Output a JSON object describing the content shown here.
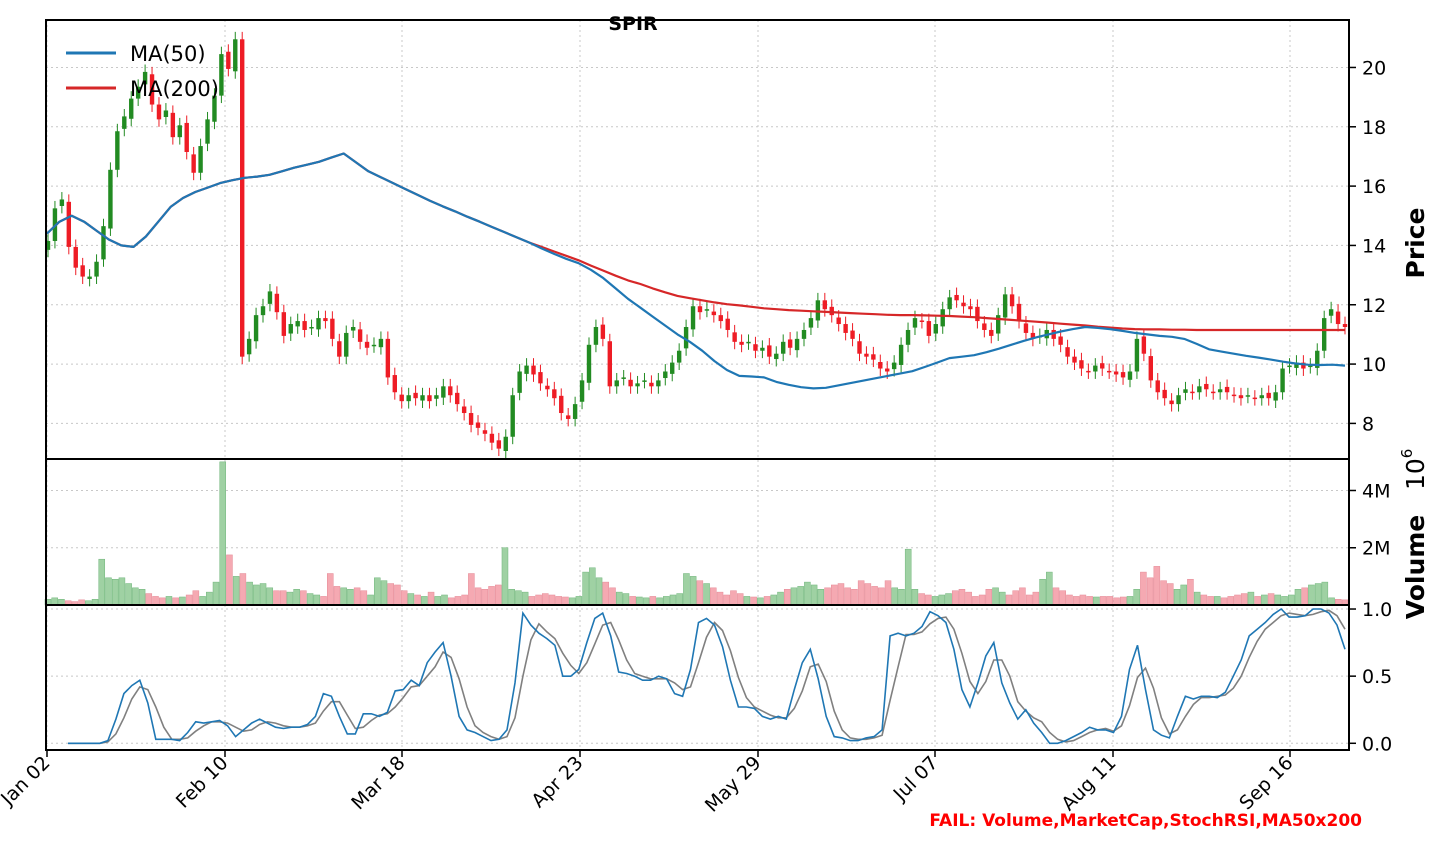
{
  "chart_data": {
    "type": "candlestick",
    "title": "SPIR",
    "date_labels": [
      "Jan 02",
      "Feb 10",
      "Mar 18",
      "Apr 23",
      "May 29",
      "Jul 07",
      "Aug 11",
      "Sep 16"
    ],
    "legend": [
      {
        "name": "MA(50)",
        "color": "#1f77b4"
      },
      {
        "name": "MA(200)",
        "color": "#d62728"
      }
    ],
    "price_panel": {
      "ylabel": "Price",
      "ylim": [
        6.8,
        21.6
      ],
      "yticks": [
        {
          "v": 8,
          "label": "8"
        },
        {
          "v": 10,
          "label": "10"
        },
        {
          "v": 12,
          "label": "12"
        },
        {
          "v": 14,
          "label": "14"
        },
        {
          "v": 16,
          "label": "16"
        },
        {
          "v": 18,
          "label": "18"
        },
        {
          "v": 20,
          "label": "20"
        }
      ],
      "close": [
        14.15,
        15.25,
        15.55,
        13.95,
        13.25,
        12.95,
        12.95,
        13.45,
        14.65,
        16.55,
        17.85,
        18.35,
        18.95,
        19.35,
        19.85,
        18.75,
        18.25,
        18.55,
        17.65,
        18.05,
        17.15,
        16.45,
        17.35,
        18.25,
        19.05,
        20.45,
        19.95,
        20.95,
        10.25,
        10.85,
        11.65,
        11.95,
        12.45,
        11.75,
        10.95,
        11.35,
        11.45,
        11.15,
        11.25,
        11.55,
        11.45,
        10.85,
        10.25,
        11.05,
        11.25,
        10.75,
        10.55,
        10.65,
        10.85,
        9.55,
        9.05,
        8.75,
        8.95,
        8.85,
        8.95,
        8.75,
        8.95,
        9.25,
        8.95,
        8.65,
        8.35,
        7.95,
        7.85,
        7.65,
        7.35,
        7.15,
        7.55,
        8.95,
        9.75,
        9.95,
        9.65,
        9.35,
        9.15,
        8.85,
        8.35,
        8.15,
        8.65,
        9.45,
        10.65,
        11.25,
        10.85,
        9.25,
        9.45,
        9.55,
        9.25,
        9.35,
        9.45,
        9.25,
        9.45,
        9.75,
        10.05,
        10.45,
        11.25,
        11.95,
        11.75,
        11.85,
        11.65,
        11.45,
        11.15,
        10.75,
        10.65,
        10.75,
        10.45,
        10.55,
        10.25,
        10.35,
        10.75,
        10.55,
        10.85,
        11.15,
        11.55,
        12.15,
        11.85,
        11.65,
        11.35,
        11.05,
        10.85,
        10.35,
        10.25,
        10.15,
        9.85,
        9.75,
        10.05,
        10.65,
        11.15,
        11.55,
        11.45,
        10.95,
        11.35,
        11.85,
        12.25,
        12.15,
        11.95,
        11.85,
        11.45,
        11.15,
        10.95,
        11.65,
        12.35,
        11.95,
        11.45,
        11.05,
        10.85,
        10.95,
        11.15,
        10.85,
        10.65,
        10.25,
        10.05,
        9.85,
        9.75,
        9.95,
        9.85,
        9.75,
        9.65,
        9.55,
        9.75,
        10.85,
        10.35,
        9.45,
        9.05,
        8.85,
        8.65,
        8.95,
        9.15,
        9.05,
        9.25,
        9.15,
        9.05,
        9.15,
        9.05,
        8.95,
        8.85,
        8.95,
        8.85,
        8.95,
        8.85,
        9.05,
        9.85,
        9.95,
        10.05,
        9.85,
        9.95,
        10.45,
        11.55,
        11.85,
        11.35,
        11.25
      ],
      "ma50": [
        14.4,
        14.8,
        15.0,
        14.8,
        14.5,
        14.2,
        14.0,
        13.95,
        14.3,
        14.8,
        15.3,
        15.6,
        15.8,
        15.95,
        16.1,
        16.2,
        16.28,
        16.32,
        16.38,
        16.5,
        16.62,
        16.72,
        16.82,
        16.96,
        17.1,
        16.8,
        16.5,
        16.3,
        16.1,
        15.9,
        15.7,
        15.5,
        15.32,
        15.15,
        14.97,
        14.8,
        14.62,
        14.45,
        14.27,
        14.1,
        13.9,
        13.72,
        13.55,
        13.4,
        13.18,
        12.9,
        12.55,
        12.2,
        11.9,
        11.6,
        11.3,
        11.0,
        10.75,
        10.45,
        10.1,
        9.8,
        9.6,
        9.58,
        9.55,
        9.4,
        9.3,
        9.22,
        9.18,
        9.2,
        9.28,
        9.36,
        9.44,
        9.52,
        9.6,
        9.68,
        9.76,
        9.9,
        10.05,
        10.2,
        10.25,
        10.3,
        10.4,
        10.52,
        10.65,
        10.78,
        10.9,
        11.0,
        11.1,
        11.18,
        11.25,
        11.22,
        11.18,
        11.12,
        11.05,
        11.0,
        10.95,
        10.92,
        10.85,
        10.68,
        10.5,
        10.42,
        10.35,
        10.28,
        10.22,
        10.15,
        10.08,
        10.02,
        9.98,
        9.97,
        9.98,
        9.95
      ],
      "ma200": [
        14.4,
        14.8,
        15.0,
        14.8,
        14.5,
        14.2,
        14.0,
        13.95,
        14.3,
        14.8,
        15.3,
        15.6,
        15.8,
        15.95,
        16.1,
        16.2,
        16.28,
        16.32,
        16.38,
        16.5,
        16.62,
        16.72,
        16.82,
        16.96,
        17.1,
        16.8,
        16.5,
        16.3,
        16.1,
        15.9,
        15.7,
        15.5,
        15.32,
        15.15,
        14.97,
        14.8,
        14.62,
        14.45,
        14.27,
        14.1,
        13.95,
        13.8,
        13.65,
        13.5,
        13.32,
        13.15,
        12.98,
        12.82,
        12.7,
        12.55,
        12.42,
        12.3,
        12.22,
        12.15,
        12.08,
        12.02,
        11.98,
        11.93,
        11.88,
        11.85,
        11.82,
        11.8,
        11.78,
        11.76,
        11.74,
        11.72,
        11.7,
        11.68,
        11.66,
        11.65,
        11.65,
        11.64,
        11.63,
        11.62,
        11.6,
        11.58,
        11.55,
        11.52,
        11.49,
        11.46,
        11.43,
        11.4,
        11.36,
        11.33,
        11.3,
        11.26,
        11.23,
        11.2,
        11.18,
        11.17,
        11.17,
        11.16,
        11.16,
        11.15,
        11.15,
        11.15,
        11.15,
        11.15,
        11.15,
        11.15,
        11.15,
        11.15,
        11.15,
        11.15,
        11.15,
        11.15
      ]
    },
    "volume_panel": {
      "ylabel": "Volume",
      "scale_label": "10",
      "scale_exp": "6",
      "ylim": [
        0,
        5.1
      ],
      "yticks": [
        {
          "v": 2,
          "label": "2M"
        },
        {
          "v": 4,
          "label": "4M"
        }
      ],
      "values": [
        0.2,
        0.25,
        0.2,
        0.15,
        0.12,
        0.18,
        0.15,
        0.2,
        1.6,
        0.95,
        0.9,
        0.95,
        0.75,
        0.6,
        0.55,
        0.4,
        0.3,
        0.25,
        0.3,
        0.25,
        0.28,
        0.35,
        0.5,
        0.3,
        0.45,
        0.8,
        5.0,
        1.75,
        1.0,
        1.1,
        0.8,
        0.7,
        0.75,
        0.6,
        0.5,
        0.5,
        0.45,
        0.55,
        0.5,
        0.4,
        0.35,
        0.3,
        1.1,
        0.65,
        0.6,
        0.55,
        0.6,
        0.5,
        0.35,
        0.95,
        0.85,
        0.75,
        0.7,
        0.5,
        0.4,
        0.35,
        0.3,
        0.45,
        0.3,
        0.35,
        0.25,
        0.3,
        0.35,
        1.1,
        0.6,
        0.55,
        0.65,
        0.7,
        2.0,
        0.55,
        0.5,
        0.45,
        0.3,
        0.35,
        0.4,
        0.35,
        0.3,
        0.28,
        0.25,
        0.3,
        1.15,
        1.3,
        0.95,
        0.8,
        0.6,
        0.45,
        0.4,
        0.3,
        0.28,
        0.25,
        0.3,
        0.25,
        0.3,
        0.35,
        0.4,
        1.1,
        1.0,
        0.85,
        0.75,
        0.6,
        0.45,
        0.35,
        0.5,
        0.4,
        0.3,
        0.28,
        0.25,
        0.3,
        0.35,
        0.45,
        0.55,
        0.6,
        0.65,
        0.8,
        0.7,
        0.55,
        0.6,
        0.7,
        0.75,
        0.6,
        0.55,
        0.85,
        0.75,
        0.65,
        0.6,
        0.85,
        0.6,
        0.55,
        1.95,
        0.55,
        0.4,
        0.35,
        0.3,
        0.35,
        0.4,
        0.5,
        0.55,
        0.45,
        0.3,
        0.35,
        0.55,
        0.6,
        0.45,
        0.35,
        0.5,
        0.6,
        0.35,
        0.45,
        0.9,
        1.15,
        0.6,
        0.5,
        0.35,
        0.3,
        0.35,
        0.3,
        0.28,
        0.3,
        0.3,
        0.25,
        0.28,
        0.3,
        0.55,
        1.15,
        0.95,
        1.35,
        0.85,
        0.75,
        0.55,
        0.7,
        0.9,
        0.45,
        0.35,
        0.3,
        0.3,
        0.25,
        0.3,
        0.35,
        0.4,
        0.45,
        0.3,
        0.35,
        0.4,
        0.35,
        0.3,
        0.35,
        0.55,
        0.6,
        0.7,
        0.75,
        0.8,
        0.25,
        0.2,
        0.18
      ]
    },
    "stochrsi_panel": {
      "ylim": [
        -0.05,
        1.03
      ],
      "yticks": [
        {
          "v": 0,
          "label": "0.0"
        },
        {
          "v": 0.5,
          "label": "0.5"
        },
        {
          "v": 1,
          "label": "1.0"
        }
      ],
      "k": [
        0,
        0,
        0,
        0,
        0,
        0.02,
        0.18,
        0.37,
        0.43,
        0.47,
        0.3,
        0.03,
        0.03,
        0.03,
        0.02,
        0.08,
        0.16,
        0.15,
        0.16,
        0.17,
        0.13,
        0.05,
        0.1,
        0.15,
        0.18,
        0.15,
        0.12,
        0.11,
        0.12,
        0.12,
        0.14,
        0.2,
        0.37,
        0.35,
        0.2,
        0.07,
        0.07,
        0.22,
        0.22,
        0.2,
        0.23,
        0.39,
        0.4,
        0.47,
        0.43,
        0.6,
        0.68,
        0.75,
        0.5,
        0.2,
        0.1,
        0.08,
        0.05,
        0.02,
        0.03,
        0.1,
        0.45,
        0.97,
        0.88,
        0.82,
        0.78,
        0.73,
        0.5,
        0.5,
        0.55,
        0.75,
        0.93,
        0.97,
        0.8,
        0.53,
        0.52,
        0.5,
        0.47,
        0.47,
        0.5,
        0.48,
        0.37,
        0.35,
        0.55,
        0.9,
        0.93,
        0.88,
        0.72,
        0.47,
        0.27,
        0.27,
        0.26,
        0.2,
        0.18,
        0.2,
        0.18,
        0.4,
        0.6,
        0.7,
        0.48,
        0.2,
        0.05,
        0.04,
        0.02,
        0.02,
        0.04,
        0.05,
        0.1,
        0.8,
        0.82,
        0.8,
        0.82,
        0.87,
        0.98,
        0.95,
        0.9,
        0.7,
        0.4,
        0.27,
        0.45,
        0.65,
        0.75,
        0.45,
        0.3,
        0.18,
        0.25,
        0.15,
        0.08,
        0,
        0,
        0.02,
        0.05,
        0.08,
        0.12,
        0.1,
        0.1,
        0.08,
        0.2,
        0.55,
        0.73,
        0.4,
        0.1,
        0.06,
        0.04,
        0.2,
        0.35,
        0.33,
        0.35,
        0.35,
        0.34,
        0.38,
        0.5,
        0.62,
        0.8,
        0.85,
        0.9,
        0.96,
        1.0,
        0.94,
        0.94,
        0.95,
        1.0,
        1.0,
        0.97,
        0.88,
        0.7
      ],
      "d": [
        0,
        0,
        0,
        0,
        0,
        0.01,
        0.07,
        0.19,
        0.33,
        0.42,
        0.4,
        0.27,
        0.12,
        0.03,
        0.03,
        0.04,
        0.09,
        0.13,
        0.16,
        0.16,
        0.15,
        0.12,
        0.09,
        0.1,
        0.14,
        0.16,
        0.15,
        0.13,
        0.12,
        0.12,
        0.13,
        0.15,
        0.24,
        0.31,
        0.31,
        0.21,
        0.11,
        0.12,
        0.17,
        0.21,
        0.22,
        0.27,
        0.34,
        0.42,
        0.43,
        0.5,
        0.57,
        0.68,
        0.64,
        0.48,
        0.27,
        0.13,
        0.08,
        0.05,
        0.03,
        0.05,
        0.19,
        0.5,
        0.77,
        0.89,
        0.83,
        0.78,
        0.67,
        0.58,
        0.52,
        0.6,
        0.74,
        0.88,
        0.9,
        0.77,
        0.62,
        0.52,
        0.5,
        0.48,
        0.48,
        0.48,
        0.45,
        0.4,
        0.42,
        0.6,
        0.79,
        0.9,
        0.84,
        0.69,
        0.49,
        0.34,
        0.27,
        0.24,
        0.21,
        0.19,
        0.19,
        0.26,
        0.39,
        0.57,
        0.59,
        0.46,
        0.24,
        0.1,
        0.04,
        0.03,
        0.03,
        0.04,
        0.06,
        0.32,
        0.57,
        0.81,
        0.81,
        0.83,
        0.89,
        0.93,
        0.94,
        0.85,
        0.67,
        0.46,
        0.37,
        0.46,
        0.62,
        0.62,
        0.5,
        0.31,
        0.24,
        0.19,
        0.16,
        0.08,
        0.03,
        0.01,
        0.02,
        0.05,
        0.08,
        0.1,
        0.11,
        0.09,
        0.13,
        0.28,
        0.49,
        0.56,
        0.41,
        0.19,
        0.07,
        0.1,
        0.2,
        0.29,
        0.34,
        0.34,
        0.35,
        0.36,
        0.41,
        0.5,
        0.64,
        0.76,
        0.85,
        0.9,
        0.95,
        0.97,
        0.96,
        0.95,
        0.96,
        0.98,
        0.99,
        0.95,
        0.85
      ]
    },
    "fail_note": "FAIL: Volume,MarketCap,StochRSI,MA50x200",
    "fail_color": "#ff0000",
    "up_color": "#228b22",
    "down_color": "#ee1c25",
    "vol_up_color": "#9fd1a3",
    "vol_down_color": "#f5a9b2",
    "k_color": "#1f77b4",
    "d_color": "#808080"
  }
}
